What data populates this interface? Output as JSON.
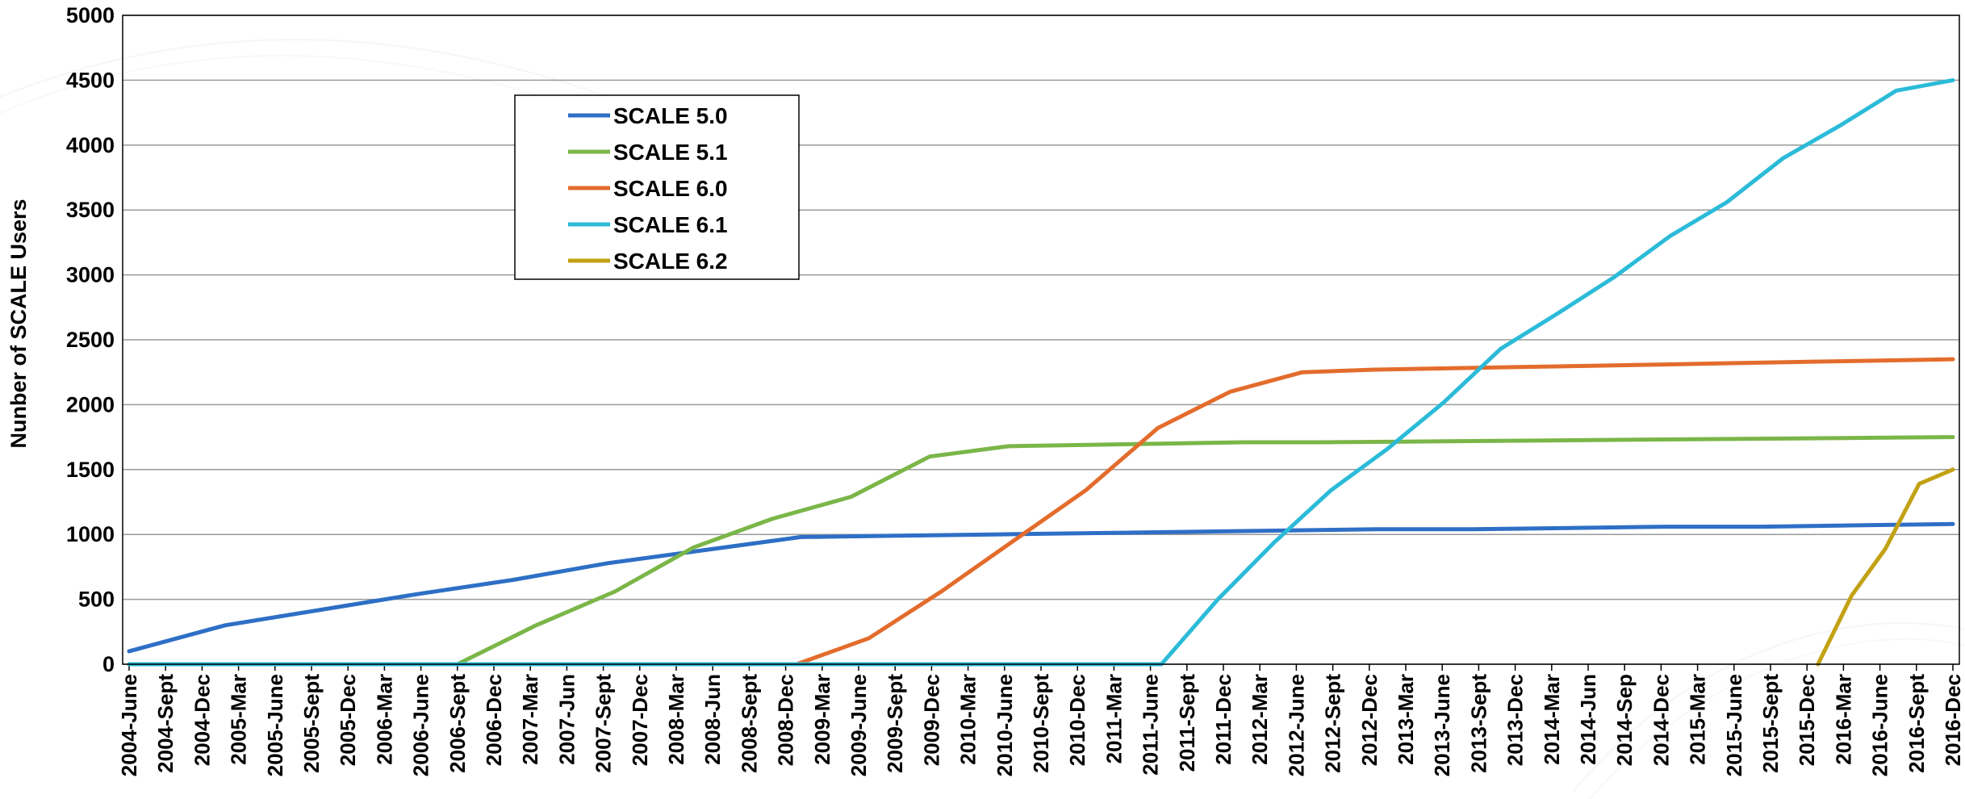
{
  "chart_data": {
    "type": "line",
    "title": "",
    "xlabel": "",
    "ylabel": "Nunber of SCALE Users",
    "ylim": [
      0,
      5000
    ],
    "yticks": [
      0,
      500,
      1000,
      1500,
      2000,
      2500,
      3000,
      3500,
      4000,
      4500,
      5000
    ],
    "grid": "horizontal",
    "legend_position": "upper-left",
    "x_labels": [
      "2004-June",
      "2004-Sept",
      "2004-Dec",
      "2005-Mar",
      "2005-June",
      "2005-Sept",
      "2005-Dec",
      "2006-Mar",
      "2006-June",
      "2006-Sept",
      "2006-Dec",
      "2007-Mar",
      "2007-Jun",
      "2007-Sept",
      "2007-Dec",
      "2008-Mar",
      "2008-Jun",
      "2008-Sept",
      "2008-Dec",
      "2009-Mar",
      "2009-June",
      "2009-Sept",
      "2009-Dec",
      "2010-Mar",
      "2010-June",
      "2010-Sept",
      "2010-Dec",
      "2011-Mar",
      "2011-June",
      "2011-Sept",
      "2011-Dec",
      "2012-Mar",
      "2012-June",
      "2012-Sept",
      "2012-Dec",
      "2013-Mar",
      "2013-June",
      "2013-Sept",
      "2013-Dec",
      "2014-Mar",
      "2014-Jun",
      "2014-Sep",
      "2014-Dec",
      "2015-Mar",
      "2015-June",
      "2015-Sept",
      "2015-Dec",
      "2016-Mar",
      "2016-June",
      "2016-Sept",
      "2016-Dec"
    ],
    "series": [
      {
        "name": "SCALE 5.0",
        "color": "#2e6fc6",
        "values": [
          100,
          300,
          420,
          540,
          650,
          780,
          880,
          980,
          990,
          1000,
          1010,
          1020,
          1030,
          1040,
          1040,
          1050,
          1060,
          1060,
          1070,
          1080
        ]
      },
      {
        "name": "SCALE 5.1",
        "color": "#7ab648",
        "values": [
          0,
          300,
          560,
          900,
          1120,
          1290,
          1600,
          1680,
          1690,
          1700,
          1710,
          1710,
          1715,
          1720,
          1725,
          1730,
          1735,
          1740,
          1745,
          1750
        ]
      },
      {
        "name": "SCALE 6.0",
        "color": "#e36c2c",
        "values": [
          0,
          200,
          560,
          950,
          1340,
          1820,
          2100,
          2250,
          2270,
          2280,
          2290,
          2300,
          2310,
          2320,
          2330,
          2340,
          2350
        ]
      },
      {
        "name": "SCALE 6.1",
        "color": "#2bbbd8",
        "values": [
          0,
          500,
          940,
          1340,
          1660,
          2020,
          2430,
          2700,
          2980,
          3300,
          3560,
          3900,
          4150,
          4420,
          4500
        ]
      },
      {
        "name": "SCALE 6.2",
        "color": "#c2a114",
        "values": [
          0,
          530,
          890,
          1390,
          1500
        ]
      }
    ]
  }
}
